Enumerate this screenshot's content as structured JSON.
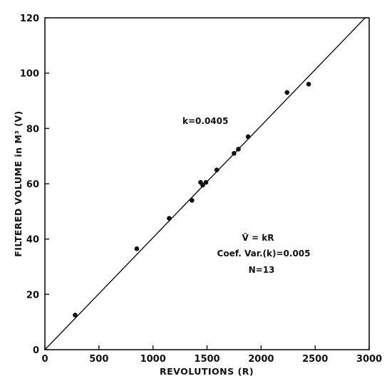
{
  "chart_data": {
    "type": "scatter",
    "xlabel": "REVOLUTIONS (R)",
    "ylabel": "FILTERED VOLUME in M³ (V)",
    "xlim": [
      0,
      3000
    ],
    "ylim": [
      0,
      120
    ],
    "x_ticks": [
      0,
      500,
      1000,
      1500,
      2000,
      2500,
      3000
    ],
    "y_ticks": [
      0,
      20,
      40,
      60,
      80,
      100,
      120
    ],
    "grid": false,
    "series": [
      {
        "points": [
          {
            "x": 280,
            "y": 12.5
          },
          {
            "x": 850,
            "y": 36.5
          },
          {
            "x": 1150,
            "y": 47.5
          },
          {
            "x": 1360,
            "y": 54
          },
          {
            "x": 1440,
            "y": 60.5
          },
          {
            "x": 1460,
            "y": 59.5
          },
          {
            "x": 1490,
            "y": 60.5
          },
          {
            "x": 1590,
            "y": 65
          },
          {
            "x": 1750,
            "y": 71
          },
          {
            "x": 1790,
            "y": 72.5
          },
          {
            "x": 1880,
            "y": 77
          },
          {
            "x": 2240,
            "y": 93
          },
          {
            "x": 2440,
            "y": 96
          }
        ]
      }
    ],
    "fit_line": {
      "slope": 0.0405,
      "intercept": 0
    },
    "annotations": {
      "k_label": "k=0.0405",
      "equation": "V̂ = kR",
      "coef_var": "Coef. Var.(k)=0.005",
      "n": "N=13"
    }
  }
}
